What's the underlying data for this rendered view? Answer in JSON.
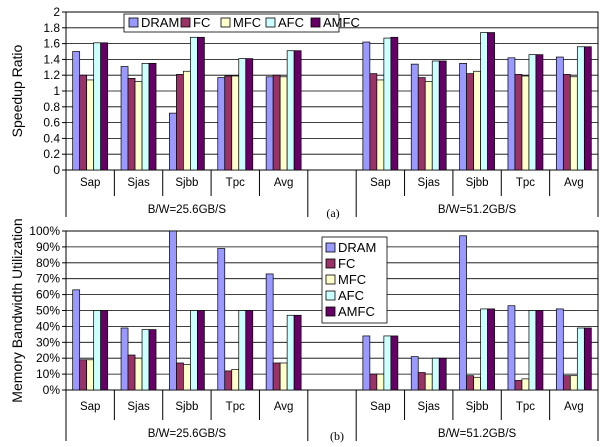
{
  "series_styles": [
    {
      "key": "DRAM",
      "color": "#9999ff"
    },
    {
      "key": "FC",
      "color": "#993366"
    },
    {
      "key": "MFC",
      "color": "#ffffcc"
    },
    {
      "key": "AFC",
      "color": "#ccffff"
    },
    {
      "key": "AMFC",
      "color": "#660066"
    }
  ],
  "chart_data": [
    {
      "type": "bar",
      "panel_label": "(a)",
      "ylabel": "Speedup Ratio",
      "ylim": [
        0,
        2
      ],
      "yticks": [
        "0",
        "0.2",
        "0.4",
        "0.6",
        "0.8",
        "1",
        "1.2",
        "1.4",
        "1.6",
        "1.8",
        "2"
      ],
      "grid": true,
      "legend_position": "top",
      "categories": [
        "Sap",
        "Sjas",
        "Sjbb",
        "Tpc",
        "Avg",
        "Sap",
        "Sjas",
        "Sjbb",
        "Tpc",
        "Avg"
      ],
      "group_labels": [
        "B/W=25.6GB/S",
        "B/W=51.2GB/S"
      ],
      "series": [
        {
          "name": "DRAM",
          "values": [
            1.5,
            1.31,
            0.72,
            1.17,
            1.18,
            1.62,
            1.34,
            1.35,
            1.42,
            1.43
          ]
        },
        {
          "name": "FC",
          "values": [
            1.2,
            1.16,
            1.21,
            1.19,
            1.2,
            1.22,
            1.17,
            1.22,
            1.21,
            1.21
          ]
        },
        {
          "name": "MFC",
          "values": [
            1.14,
            1.12,
            1.25,
            1.19,
            1.18,
            1.14,
            1.12,
            1.25,
            1.19,
            1.18
          ]
        },
        {
          "name": "AFC",
          "values": [
            1.61,
            1.35,
            1.68,
            1.41,
            1.51,
            1.67,
            1.38,
            1.74,
            1.46,
            1.56
          ]
        },
        {
          "name": "AMFC",
          "values": [
            1.61,
            1.35,
            1.68,
            1.41,
            1.51,
            1.68,
            1.38,
            1.74,
            1.46,
            1.56
          ]
        }
      ]
    },
    {
      "type": "bar",
      "panel_label": "(b)",
      "ylabel": "Memory Bandwidth Utilization",
      "ylim": [
        0,
        100
      ],
      "yticks": [
        "0%",
        "10%",
        "20%",
        "30%",
        "40%",
        "50%",
        "60%",
        "70%",
        "80%",
        "90%",
        "100%"
      ],
      "grid": true,
      "legend_position": "top-right",
      "categories": [
        "Sap",
        "Sjas",
        "Sjbb",
        "Tpc",
        "Avg",
        "Sap",
        "Sjas",
        "Sjbb",
        "Tpc",
        "Avg"
      ],
      "group_labels": [
        "B/W=25.6GB/S",
        "B/W=51.2GB/S"
      ],
      "series": [
        {
          "name": "DRAM",
          "values": [
            63,
            39,
            100,
            89,
            73,
            34,
            21,
            97,
            53,
            51
          ]
        },
        {
          "name": "FC",
          "values": [
            19,
            22,
            17,
            12,
            17,
            10,
            11,
            9,
            6,
            9
          ]
        },
        {
          "name": "MFC",
          "values": [
            19,
            20,
            16,
            13,
            17,
            10,
            10,
            8,
            7,
            9
          ]
        },
        {
          "name": "AFC",
          "values": [
            50,
            38,
            50,
            50,
            47,
            34,
            20,
            51,
            50,
            39
          ]
        },
        {
          "name": "AMFC",
          "values": [
            50,
            38,
            50,
            50,
            47,
            34,
            20,
            51,
            50,
            39
          ]
        }
      ]
    }
  ]
}
